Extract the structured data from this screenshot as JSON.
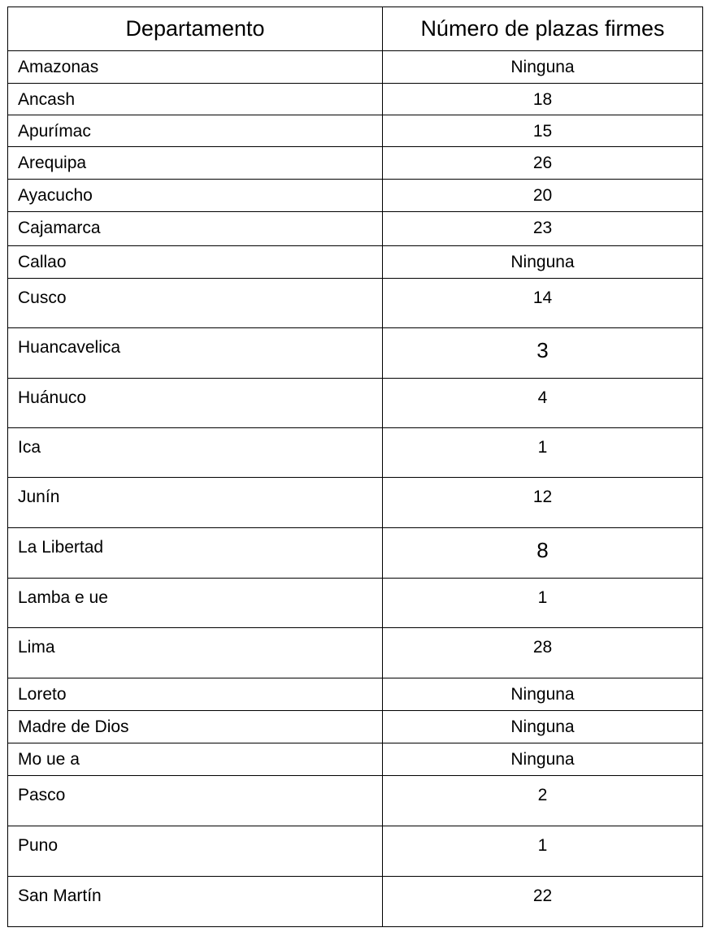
{
  "table": {
    "header": [
      "Departamento",
      "Número de plazas firmes"
    ],
    "rows": [
      [
        "Amazonas",
        "Ninguna"
      ],
      [
        "Ancash",
        18
      ],
      [
        "Apurímac",
        15
      ],
      [
        "Arequipa",
        26
      ],
      [
        "Ayacucho",
        20
      ],
      [
        "Cajamarca",
        23
      ],
      [
        "Callao",
        "Ninguna"
      ],
      [
        "Cusco",
        14
      ],
      [
        "Huancavelica",
        3
      ],
      [
        "Huánuco",
        4
      ],
      [
        "Ica",
        1
      ],
      [
        "Junín",
        12
      ],
      [
        "La Libertad",
        8
      ],
      [
        "Lamba e ue",
        1
      ],
      [
        "Lima",
        28
      ],
      [
        "Loreto",
        "Ninguna"
      ],
      [
        "Madre de Dios",
        "Ninguna"
      ],
      [
        "Mo ue a",
        "Ninguna"
      ],
      [
        "Pasco",
        2
      ],
      [
        "Puno",
        1
      ],
      [
        "San Martín",
        22
      ]
    ]
  }
}
